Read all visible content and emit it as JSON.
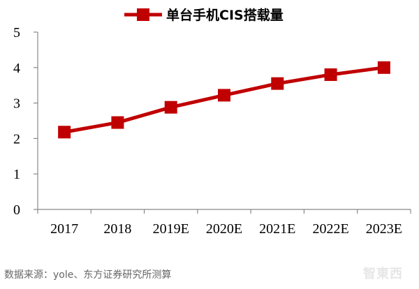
{
  "chart_data": {
    "type": "line",
    "categories": [
      "2017",
      "2018",
      "2019E",
      "2020E",
      "2021E",
      "2022E",
      "2023E"
    ],
    "series": [
      {
        "name": "单台手机CIS搭载量",
        "values": [
          2.18,
          2.45,
          2.88,
          3.22,
          3.55,
          3.8,
          4.0
        ]
      }
    ],
    "ylim": [
      0,
      5
    ],
    "yticks": [
      "0",
      "1",
      "2",
      "3",
      "4",
      "5"
    ],
    "legend": "top-center",
    "grid": false,
    "marker": "square",
    "color": "#c00000"
  },
  "source": "数据来源：yole、东方证券研究所测算",
  "watermark": "智東西"
}
